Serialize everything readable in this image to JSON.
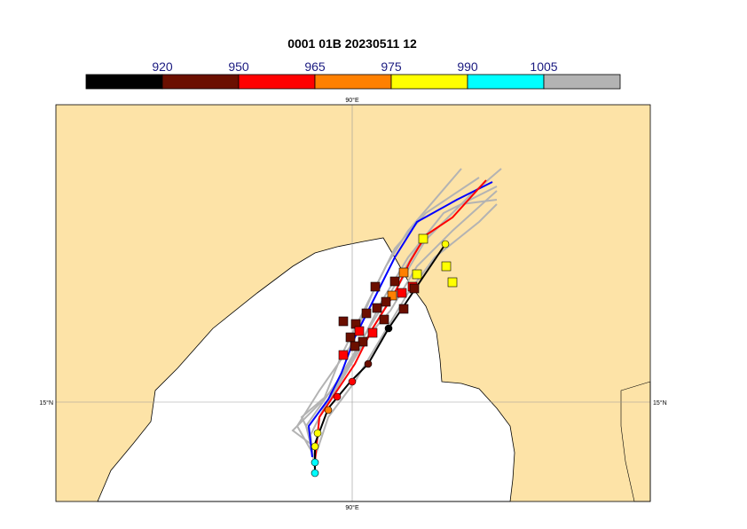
{
  "header": {
    "title": "0001 01B 20230511 12"
  },
  "colorbar": {
    "labels": [
      920,
      950,
      965,
      975,
      990,
      1005
    ],
    "colors": [
      "#000000",
      "#6b0f00",
      "#ff0000",
      "#ff8000",
      "#ffff00",
      "#00ffff",
      "#b3b3b3"
    ]
  },
  "map": {
    "lon_label_top": "90°E",
    "lon_label_bottom": "90°E",
    "lat_label_left": "15°N",
    "lat_label_right": "15°N"
  }
}
